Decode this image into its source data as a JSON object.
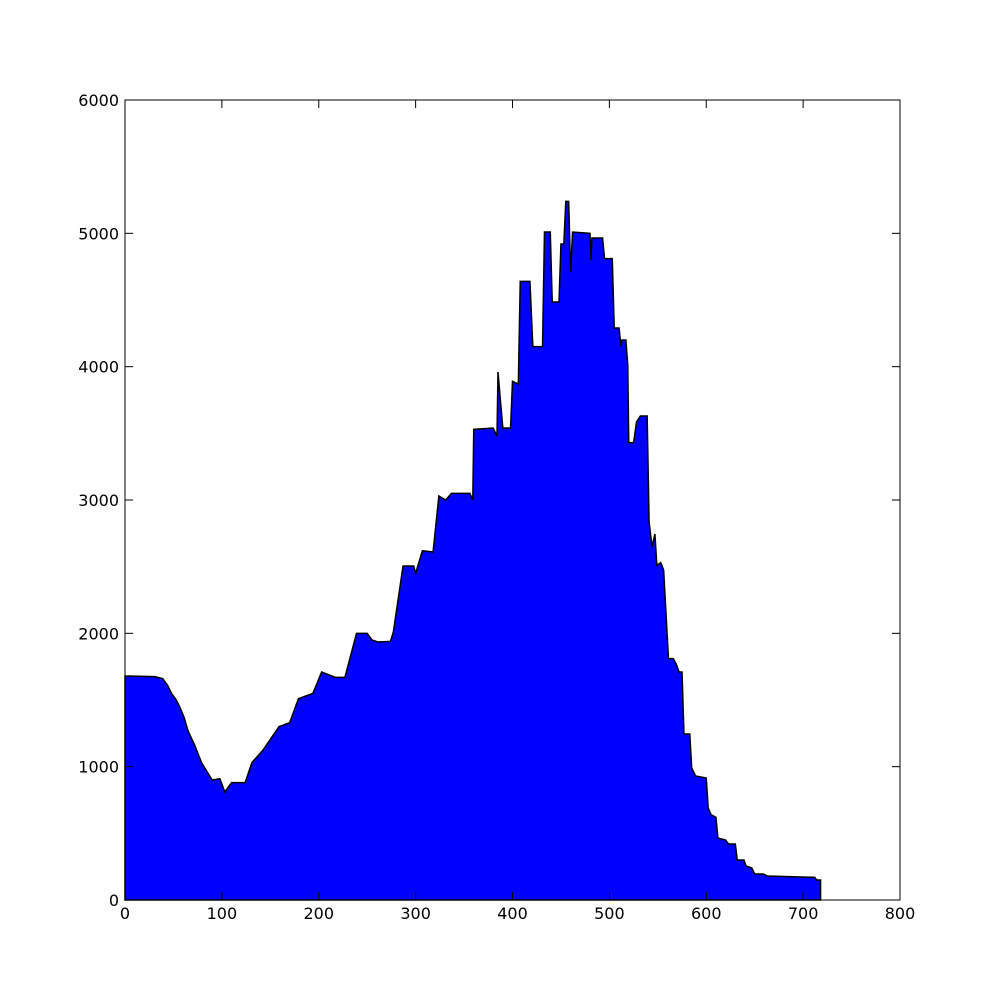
{
  "chart_data": {
    "type": "area",
    "color": "#0000ff",
    "edgecolor": "#000000",
    "x": [
      0,
      31,
      39,
      44,
      48,
      53,
      57,
      61,
      65,
      72,
      79,
      90,
      98,
      103,
      110,
      124,
      131,
      142,
      159,
      170,
      179,
      194,
      203,
      217,
      227,
      239,
      250,
      255,
      261,
      274,
      277,
      287,
      298,
      300,
      307,
      318,
      324,
      331,
      337,
      356,
      359,
      360,
      380,
      384,
      385,
      390,
      398,
      400,
      406,
      408,
      418,
      421,
      431,
      433,
      439,
      441,
      448,
      450,
      453,
      455,
      458,
      460,
      462,
      480,
      481,
      482,
      493,
      495,
      503,
      505,
      510,
      512,
      513,
      517,
      519,
      520,
      525,
      528,
      532,
      539,
      541,
      544,
      547,
      549,
      553,
      556,
      561,
      566,
      569,
      572,
      575,
      577,
      583,
      585,
      589,
      600,
      602,
      605,
      610,
      612,
      620,
      623,
      630,
      632,
      639,
      641,
      647,
      650,
      659,
      663,
      712,
      714,
      718
    ],
    "values": [
      1680,
      1675,
      1660,
      1610,
      1550,
      1500,
      1440,
      1370,
      1270,
      1160,
      1030,
      900,
      910,
      810,
      880,
      880,
      1030,
      1120,
      1300,
      1330,
      1510,
      1550,
      1710,
      1670,
      1670,
      2000,
      2000,
      1950,
      1935,
      1940,
      2010,
      2505,
      2505,
      2450,
      2620,
      2610,
      3030,
      3000,
      3050,
      3050,
      3000,
      3530,
      3540,
      3480,
      3960,
      3540,
      3540,
      3890,
      3870,
      4640,
      4640,
      4150,
      4150,
      5010,
      5010,
      4485,
      4485,
      4920,
      4920,
      5240,
      5240,
      4710,
      5010,
      5000,
      4800,
      4965,
      4965,
      4810,
      4810,
      4290,
      4290,
      4150,
      4200,
      4200,
      4010,
      3430,
      3430,
      3585,
      3630,
      3630,
      2835,
      2650,
      2745,
      2510,
      2530,
      2475,
      1810,
      1810,
      1770,
      1710,
      1710,
      1245,
      1245,
      990,
      930,
      915,
      690,
      640,
      620,
      465,
      450,
      420,
      420,
      300,
      300,
      255,
      240,
      195,
      195,
      180,
      170,
      150,
      150
    ],
    "xlim": [
      0,
      800
    ],
    "xticks": [
      0,
      100,
      200,
      300,
      400,
      500,
      600,
      700,
      800
    ],
    "ylim": [
      0,
      6000
    ],
    "yticks": [
      0,
      1000,
      2000,
      3000,
      4000,
      5000,
      6000
    ],
    "grid": false
  }
}
